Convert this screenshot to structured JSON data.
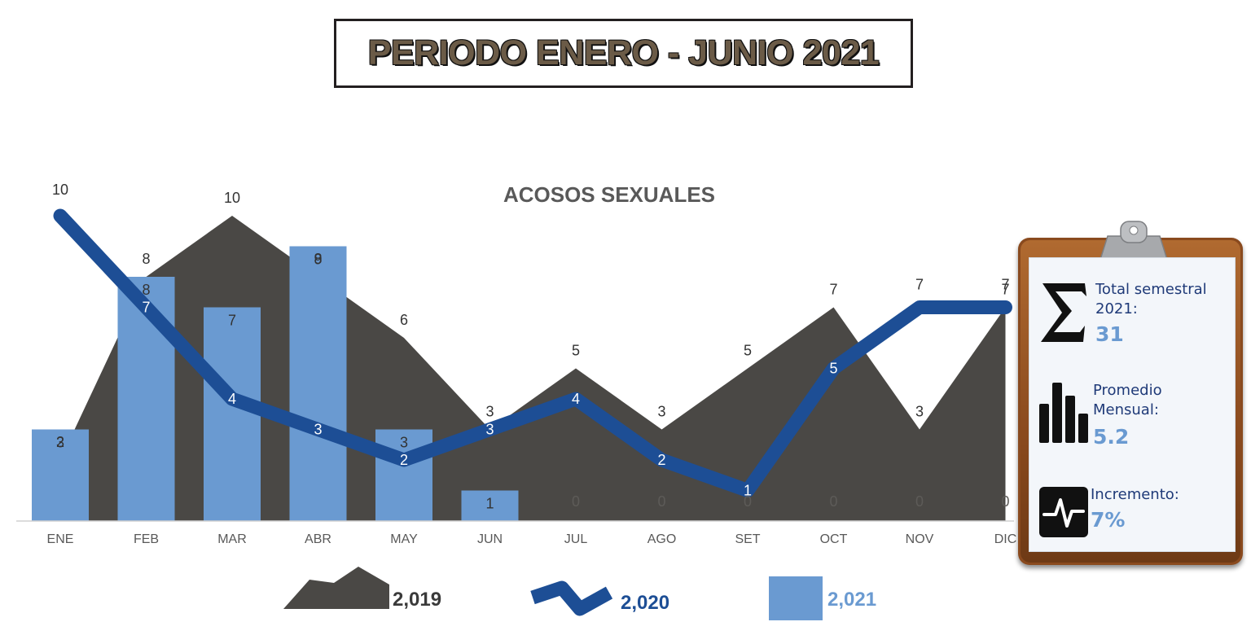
{
  "header": {
    "title": "PERIODO ENERO - JUNIO 2021"
  },
  "chart_data": {
    "type": "bar",
    "title": "ACOSOS SEXUALES",
    "categories": [
      "ENE",
      "FEB",
      "MAR",
      "ABR",
      "MAY",
      "JUN",
      "JUL",
      "AGO",
      "SET",
      "OCT",
      "NOV",
      "DIC"
    ],
    "ylim": [
      0,
      10
    ],
    "grid": false,
    "series": [
      {
        "name": "2,019",
        "type": "area",
        "color": "#4a4845",
        "values": [
          2,
          8,
          10,
          8,
          6,
          3,
          5,
          3,
          5,
          7,
          3,
          7
        ]
      },
      {
        "name": "2,020",
        "type": "line",
        "color": "#1d4e95",
        "values": [
          10,
          7,
          4,
          3,
          2,
          3,
          4,
          2,
          1,
          5,
          7,
          7
        ]
      },
      {
        "name": "2,021",
        "type": "bar",
        "color": "#6a9ad1",
        "values": [
          3,
          8,
          7,
          9,
          3,
          1,
          0,
          0,
          0,
          0,
          0,
          0
        ]
      }
    ],
    "legend_position": "bottom"
  },
  "stats": {
    "total_label_1": "Total semestral",
    "total_label_2": "2021:",
    "total_value": "31",
    "avg_label_1": "Promedio",
    "avg_label_2": "Mensual:",
    "avg_value": "5.2",
    "inc_label": "Incremento:",
    "inc_value": "7%",
    "icons": [
      "sigma-icon",
      "bar-chart-icon",
      "heartbeat-icon"
    ]
  }
}
